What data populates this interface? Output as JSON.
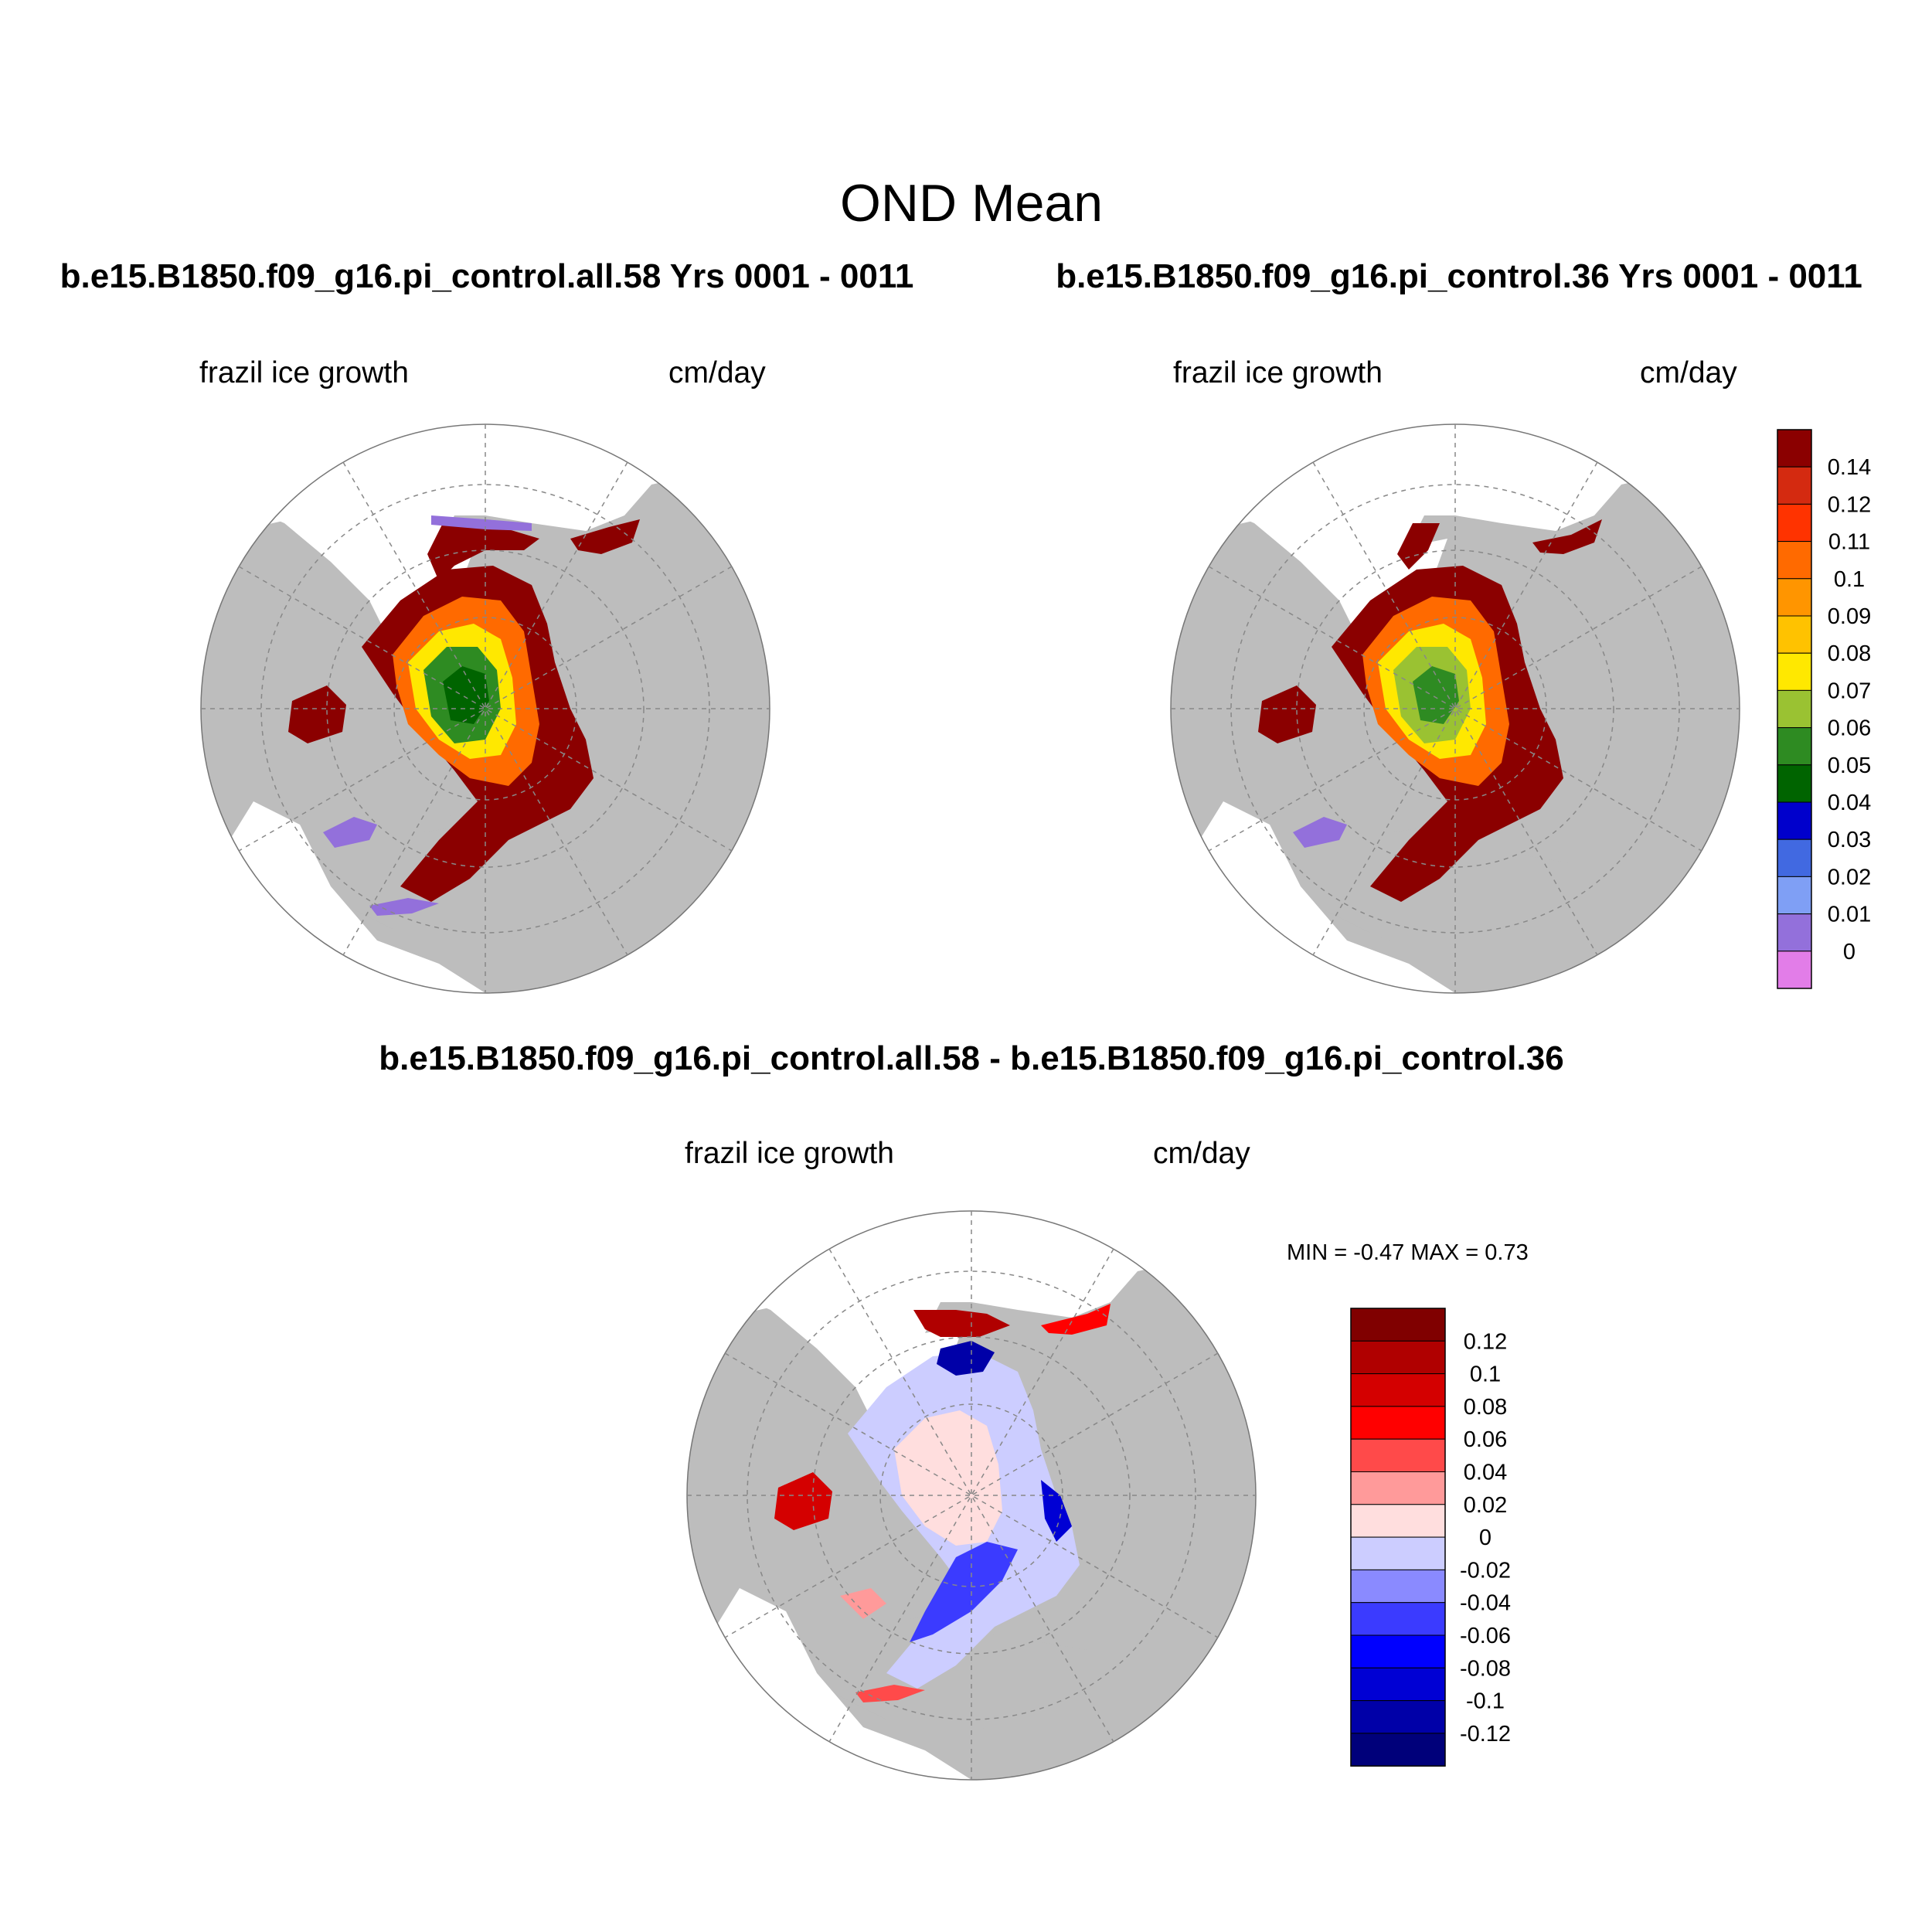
{
  "figure": {
    "title": "OND Mean",
    "colors": {
      "land": "#bdbdbd",
      "ocean": "#ffffff",
      "grid": "#888888"
    }
  },
  "panels": [
    {
      "id": "top-left",
      "title": "b.e15.B1850.f09_g16.pi_control.all.58  Yrs 0001 - 0011",
      "variable": "frazil ice growth",
      "units": "cm/day",
      "scheme": "absolute"
    },
    {
      "id": "top-right",
      "title": "b.e15.B1850.f09_g16.pi_control.36  Yrs 0001 - 0011",
      "variable": "frazil ice growth",
      "units": "cm/day",
      "scheme": "absolute"
    },
    {
      "id": "bottom-diff",
      "title": "b.e15.B1850.f09_g16.pi_control.all.58 - b.e15.B1850.f09_g16.pi_control.36",
      "variable": "frazil ice growth",
      "units": "cm/day",
      "scheme": "difference",
      "minmax": "MIN =  -0.47 MAX =   0.73"
    }
  ],
  "colorbars": {
    "absolute": {
      "labels": [
        "0.14",
        "0.12",
        "0.11",
        "0.1",
        "0.09",
        "0.08",
        "0.07",
        "0.06",
        "0.05",
        "0.04",
        "0.03",
        "0.02",
        "0.01",
        "0"
      ],
      "colors": [
        "#8b0000",
        "#d42a10",
        "#ff3300",
        "#ff6a00",
        "#ff9500",
        "#ffc200",
        "#ffe800",
        "#9ac232",
        "#2e8b22",
        "#006400",
        "#0000cc",
        "#4169e1",
        "#7f9ff5",
        "#9370db",
        "#e27de8"
      ]
    },
    "difference": {
      "labels": [
        "0.12",
        "0.1",
        "0.08",
        "0.06",
        "0.04",
        "0.02",
        "0",
        "-0.02",
        "-0.04",
        "-0.06",
        "-0.08",
        "-0.1",
        "-0.12"
      ],
      "colors": [
        "#800000",
        "#b00000",
        "#d40000",
        "#ff0000",
        "#ff4a4a",
        "#ff9a9a",
        "#ffdede",
        "#cccdff",
        "#8a8aff",
        "#3b3bff",
        "#0000ff",
        "#0000d4",
        "#0000a8",
        "#00007a"
      ]
    }
  }
}
